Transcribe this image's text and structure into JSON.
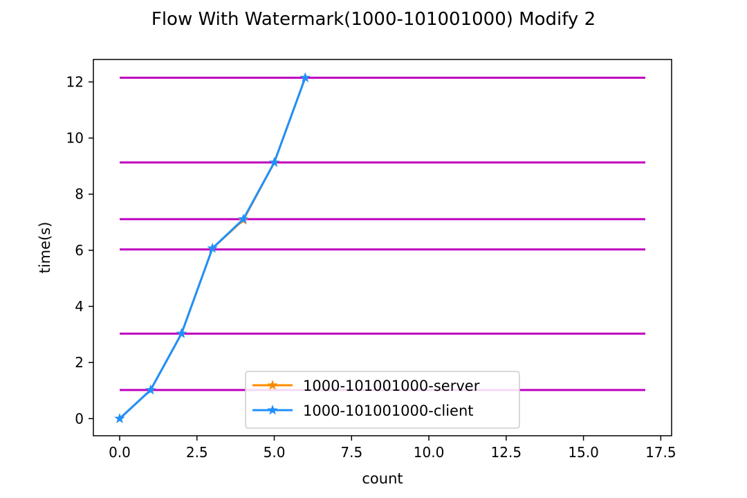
{
  "chart_data": {
    "type": "line",
    "title": "Flow With Watermark(1000-101001000) Modify 2",
    "xlabel": "count",
    "ylabel": "time(s)",
    "xlim": [
      -0.85,
      17.85
    ],
    "ylim": [
      -0.61,
      12.8
    ],
    "x_ticks": [
      0.0,
      2.5,
      5.0,
      7.5,
      10.0,
      12.5,
      15.0,
      17.5
    ],
    "x_tick_labels": [
      "0.0",
      "2.5",
      "5.0",
      "7.5",
      "10.0",
      "12.5",
      "15.0",
      "17.5"
    ],
    "y_ticks": [
      0,
      2,
      4,
      6,
      8,
      10,
      12
    ],
    "y_tick_labels": [
      "0",
      "2",
      "4",
      "6",
      "8",
      "10",
      "12"
    ],
    "grid": false,
    "legend_position": "lower-center",
    "series": [
      {
        "name": "1000-101001000-server",
        "color": "#ff8c00",
        "marker": "star",
        "x": [
          0,
          1,
          2,
          3,
          4,
          5,
          6
        ],
        "values": [
          0.0,
          1.02,
          3.03,
          6.07,
          7.08,
          9.13,
          12.15
        ]
      },
      {
        "name": "1000-101001000-client",
        "color": "#1e90ff",
        "marker": "star",
        "x": [
          0,
          1,
          2,
          3,
          4,
          5,
          6
        ],
        "values": [
          0.0,
          1.02,
          3.03,
          6.07,
          7.11,
          9.13,
          12.15
        ]
      }
    ],
    "reference_lines": {
      "color": "#bf00bf",
      "x_range": [
        0,
        17
      ],
      "y_values": [
        1.02,
        3.03,
        6.03,
        7.11,
        9.13,
        12.15
      ]
    }
  }
}
